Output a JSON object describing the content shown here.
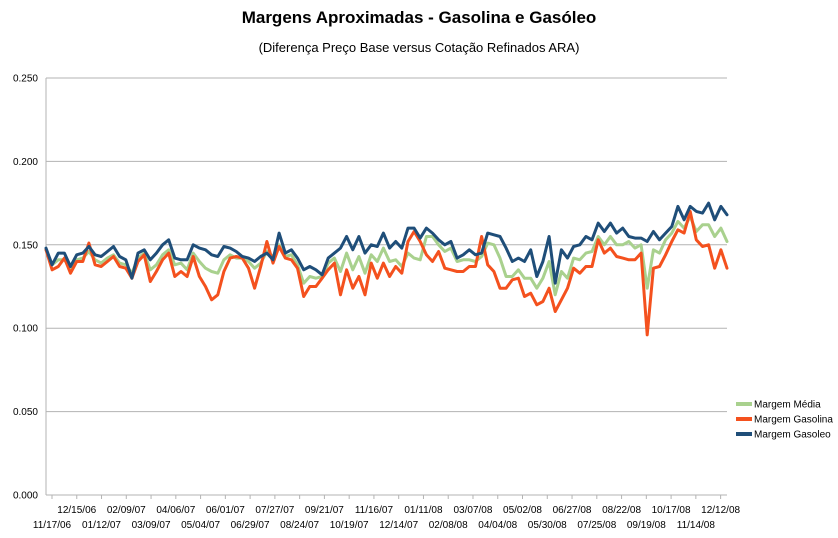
{
  "title": "Margens Aproximadas - Gasolina e Gasóleo",
  "subtitle": "(Diferença Preço Base versus Cotação Refinados ARA)",
  "chart_data": {
    "type": "line",
    "title": "Margens Aproximadas - Gasolina e Gasóleo",
    "subtitle": "(Diferença Preço Base versus Cotação Refinados ARA)",
    "xlabel": "",
    "ylabel": "",
    "ylim": [
      0,
      0.25
    ],
    "yticks": [
      "0.000",
      "0.050",
      "0.100",
      "0.150",
      "0.200",
      "0.250"
    ],
    "grid": "horizontal",
    "legend_position": "right",
    "x_tick_labels_upper": [
      "12/15/06",
      "02/09/07",
      "04/06/07",
      "06/01/07",
      "07/27/07",
      "09/21/07",
      "11/16/07",
      "01/11/08",
      "03/07/08",
      "05/02/08",
      "06/27/08",
      "08/22/08",
      "10/17/08",
      "12/12/08"
    ],
    "x_tick_labels_lower": [
      "11/17/06",
      "01/12/07",
      "03/09/07",
      "05/04/07",
      "06/29/07",
      "08/24/07",
      "10/19/07",
      "12/14/07",
      "02/08/08",
      "04/04/08",
      "05/30/08",
      "07/25/08",
      "09/19/08",
      "11/14/08"
    ],
    "series": [
      {
        "name": "Margem Média",
        "color": "#a9d18e",
        "values": [
          0.147,
          0.138,
          0.141,
          0.141,
          0.136,
          0.141,
          0.142,
          0.146,
          0.141,
          0.139,
          0.142,
          0.144,
          0.139,
          0.138,
          0.133,
          0.142,
          0.145,
          0.135,
          0.138,
          0.144,
          0.147,
          0.138,
          0.139,
          0.135,
          0.145,
          0.14,
          0.136,
          0.134,
          0.133,
          0.141,
          0.144,
          0.142,
          0.142,
          0.14,
          0.136,
          0.139,
          0.146,
          0.143,
          0.15,
          0.143,
          0.144,
          0.138,
          0.127,
          0.131,
          0.13,
          0.131,
          0.139,
          0.142,
          0.134,
          0.145,
          0.135,
          0.143,
          0.133,
          0.144,
          0.14,
          0.148,
          0.14,
          0.141,
          0.137,
          0.145,
          0.142,
          0.141,
          0.155,
          0.155,
          0.15,
          0.146,
          0.148,
          0.14,
          0.141,
          0.141,
          0.14,
          0.143,
          0.151,
          0.15,
          0.142,
          0.131,
          0.131,
          0.135,
          0.13,
          0.13,
          0.124,
          0.13,
          0.14,
          0.12,
          0.134,
          0.13,
          0.142,
          0.141,
          0.145,
          0.146,
          0.155,
          0.15,
          0.155,
          0.15,
          0.15,
          0.152,
          0.148,
          0.15,
          0.124,
          0.147,
          0.145,
          0.153,
          0.157,
          0.164,
          0.16,
          0.167,
          0.158,
          0.162,
          0.162,
          0.155,
          0.16,
          0.152
        ]
      },
      {
        "name": "Margem Gasolina",
        "color": "#f4511e",
        "values": [
          0.147,
          0.135,
          0.137,
          0.142,
          0.133,
          0.14,
          0.14,
          0.151,
          0.138,
          0.137,
          0.14,
          0.143,
          0.137,
          0.136,
          0.13,
          0.14,
          0.144,
          0.128,
          0.134,
          0.141,
          0.145,
          0.131,
          0.134,
          0.131,
          0.143,
          0.131,
          0.125,
          0.117,
          0.12,
          0.134,
          0.142,
          0.143,
          0.142,
          0.136,
          0.124,
          0.137,
          0.152,
          0.139,
          0.149,
          0.142,
          0.141,
          0.136,
          0.119,
          0.125,
          0.125,
          0.13,
          0.135,
          0.139,
          0.12,
          0.135,
          0.124,
          0.131,
          0.12,
          0.139,
          0.13,
          0.139,
          0.131,
          0.137,
          0.133,
          0.152,
          0.158,
          0.152,
          0.144,
          0.14,
          0.146,
          0.136,
          0.135,
          0.134,
          0.134,
          0.137,
          0.137,
          0.155,
          0.138,
          0.134,
          0.124,
          0.124,
          0.129,
          0.13,
          0.119,
          0.121,
          0.114,
          0.116,
          0.124,
          0.11,
          0.117,
          0.124,
          0.136,
          0.133,
          0.137,
          0.137,
          0.153,
          0.145,
          0.148,
          0.143,
          0.142,
          0.141,
          0.141,
          0.145,
          0.096,
          0.136,
          0.137,
          0.144,
          0.152,
          0.159,
          0.157,
          0.17,
          0.153,
          0.149,
          0.15,
          0.136,
          0.147,
          0.136
        ]
      },
      {
        "name": "Margem Gasoleo",
        "color": "#1f4e79",
        "values": [
          0.148,
          0.138,
          0.145,
          0.145,
          0.137,
          0.144,
          0.145,
          0.149,
          0.144,
          0.143,
          0.146,
          0.149,
          0.143,
          0.141,
          0.13,
          0.145,
          0.147,
          0.141,
          0.145,
          0.15,
          0.153,
          0.142,
          0.141,
          0.141,
          0.15,
          0.148,
          0.147,
          0.144,
          0.143,
          0.149,
          0.148,
          0.146,
          0.143,
          0.142,
          0.14,
          0.143,
          0.145,
          0.141,
          0.157,
          0.145,
          0.147,
          0.142,
          0.135,
          0.137,
          0.135,
          0.132,
          0.142,
          0.145,
          0.148,
          0.155,
          0.147,
          0.155,
          0.145,
          0.15,
          0.149,
          0.157,
          0.148,
          0.152,
          0.148,
          0.16,
          0.16,
          0.154,
          0.16,
          0.157,
          0.153,
          0.15,
          0.152,
          0.142,
          0.144,
          0.147,
          0.144,
          0.145,
          0.157,
          0.156,
          0.155,
          0.148,
          0.14,
          0.142,
          0.14,
          0.147,
          0.131,
          0.14,
          0.155,
          0.127,
          0.147,
          0.142,
          0.149,
          0.15,
          0.155,
          0.153,
          0.163,
          0.158,
          0.163,
          0.157,
          0.16,
          0.155,
          0.154,
          0.154,
          0.152,
          0.158,
          0.153,
          0.157,
          0.161,
          0.173,
          0.165,
          0.173,
          0.17,
          0.169,
          0.175,
          0.165,
          0.173,
          0.168
        ]
      }
    ]
  }
}
